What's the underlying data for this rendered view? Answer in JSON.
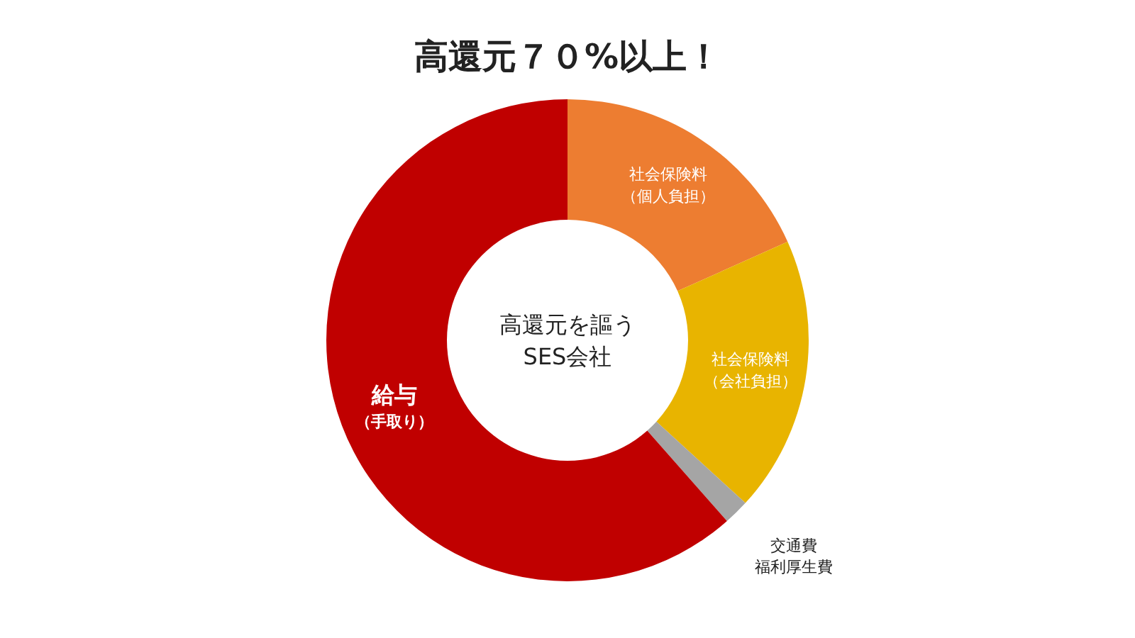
{
  "chart_data": {
    "type": "donut",
    "title": "高還元７０%以上！",
    "categories": [
      "社会保険料（個人負担）",
      "社会保険料（会社負担）",
      "交通費福利厚生費",
      "給与（手取り）"
    ],
    "values": [
      18.3,
      18.5,
      1.7,
      61.5
    ],
    "colors": [
      "#ed7d31",
      "#e8b400",
      "#a5a5a5",
      "#c00000"
    ],
    "annotations": [
      "高還元を謳うSES会社"
    ]
  }
}
